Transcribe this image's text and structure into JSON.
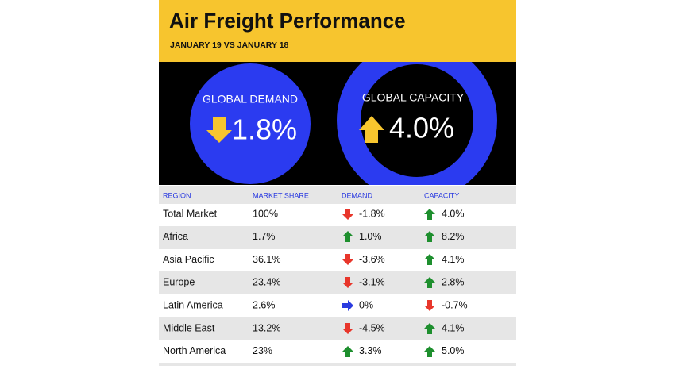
{
  "header": {
    "title": "Air Freight Performance",
    "subtitle": "JANUARY 19 VS JANUARY 18"
  },
  "highlights": [
    {
      "label": "GLOBAL DEMAND",
      "value": "1.8%"
    },
    {
      "label": "GLOBAL CAPACITY",
      "value": "4.0%"
    }
  ],
  "table": {
    "columns": [
      "REGION",
      "MARKET SHARE",
      "DEMAND",
      "CAPACITY"
    ],
    "rows": [
      [
        "Total Market",
        "100%",
        "-1.8%",
        "4.0%"
      ],
      [
        "Africa",
        "1.7%",
        "1.0%",
        "8.2%"
      ],
      [
        "Asia Pacific",
        "36.1%",
        "-3.6%",
        "4.1%"
      ],
      [
        "Europe",
        "23.4%",
        "-3.1%",
        "2.8%"
      ],
      [
        "Latin America",
        "2.6%",
        "0%",
        "-0.7%"
      ],
      [
        "Middle East",
        "13.2%",
        "-4.5%",
        "4.1%"
      ],
      [
        "North America",
        "23%",
        "3.3%",
        "5.0%"
      ]
    ]
  }
}
